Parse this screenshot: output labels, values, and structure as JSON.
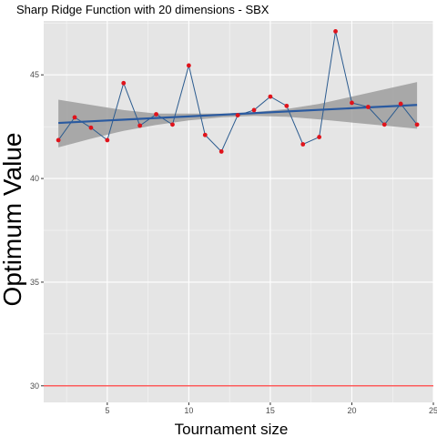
{
  "chart_data": {
    "type": "line",
    "title": "Sharp Ridge Function with 20 dimensions -  SBX",
    "xlabel": "Tournament size",
    "ylabel": "Optimum Value",
    "xlim": [
      1.1,
      25
    ],
    "ylim": [
      29.2,
      47.6
    ],
    "x_ticks": [
      5,
      10,
      15,
      20,
      25
    ],
    "x_tick_labels": [
      "5",
      "10",
      "15",
      "20",
      "25"
    ],
    "y_ticks": [
      30,
      35,
      40,
      45
    ],
    "y_tick_labels": [
      "30",
      "35",
      "40",
      "45"
    ],
    "grid": true,
    "series": [
      {
        "x": [
          2,
          3,
          4,
          5,
          6,
          7,
          8,
          9,
          10,
          11,
          12,
          13,
          14,
          15,
          16,
          17,
          18,
          19,
          20,
          21,
          22,
          23,
          24
        ],
        "values": [
          41.85,
          42.95,
          42.45,
          41.85,
          44.6,
          42.55,
          43.1,
          42.6,
          45.45,
          42.1,
          41.3,
          43.05,
          43.3,
          43.95,
          43.5,
          41.65,
          42.0,
          47.1,
          43.65,
          43.45,
          42.6,
          43.6,
          42.6
        ]
      }
    ],
    "trend": {
      "x": [
        2,
        24
      ],
      "y": [
        42.68,
        43.55
      ]
    },
    "band": {
      "x": [
        2,
        4,
        6,
        8,
        10,
        12,
        14,
        16,
        18,
        20,
        22,
        24
      ],
      "lower": [
        41.5,
        41.92,
        42.3,
        42.58,
        42.8,
        42.95,
        43.02,
        42.98,
        42.85,
        42.7,
        42.55,
        42.4
      ],
      "upper": [
        43.8,
        43.55,
        43.3,
        43.13,
        43.13,
        43.13,
        43.2,
        43.35,
        43.6,
        43.95,
        44.3,
        44.65
      ]
    },
    "hline": 30,
    "colors": {
      "panel": "#e5e5e5",
      "grid": "#ffffff",
      "line": "#2b5b8f",
      "points": "#e0131b",
      "trend": "#2a5aa0",
      "band": "#999999",
      "hline": "#ff2a2a"
    }
  }
}
